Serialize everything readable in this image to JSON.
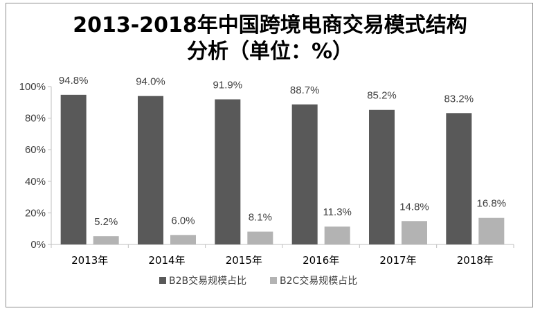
{
  "chart_data": {
    "type": "bar",
    "title_line1": "2013-2018年中国跨境电商交易模式结构",
    "title_line2": "分析（单位：%）",
    "categories": [
      "2013年",
      "2014年",
      "2015年",
      "2016年",
      "2017年",
      "2018年"
    ],
    "series": [
      {
        "name": "B2B交易规模占比",
        "values": [
          94.8,
          94.0,
          91.9,
          88.7,
          85.2,
          83.2
        ],
        "labels": [
          "94.8%",
          "94.0%",
          "91.9%",
          "88.7%",
          "85.2%",
          "83.2%"
        ],
        "color": "#595959"
      },
      {
        "name": "B2C交易规模占比",
        "values": [
          5.2,
          6.0,
          8.1,
          11.3,
          14.8,
          16.8
        ],
        "labels": [
          "5.2%",
          "6.0%",
          "8.1%",
          "11.3%",
          "14.8%",
          "16.8%"
        ],
        "color": "#b3b3b3"
      }
    ],
    "yticks": [
      "0%",
      "20%",
      "40%",
      "60%",
      "80%",
      "100%"
    ],
    "ylim": [
      0,
      100
    ],
    "grid": false,
    "legend": "bottom"
  }
}
